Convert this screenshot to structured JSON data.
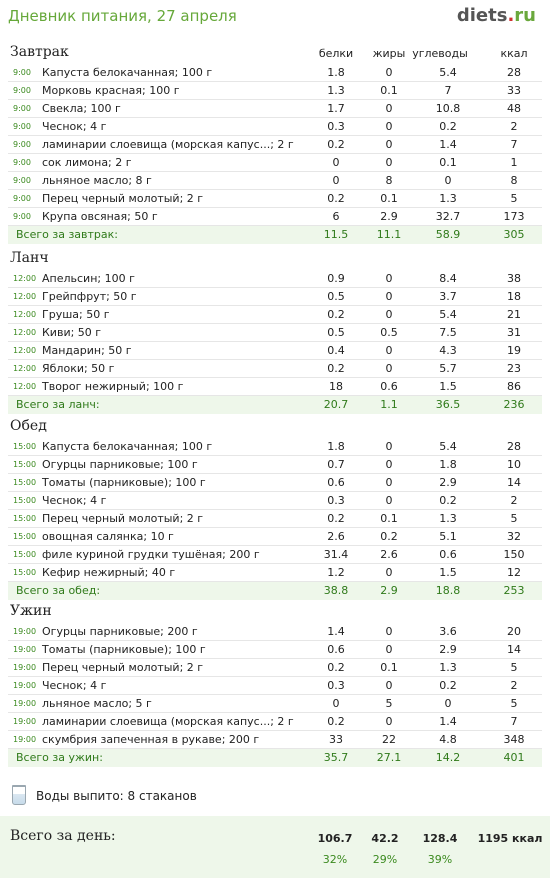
{
  "header": {
    "title": "Дневник питания, 27 апреля",
    "logo_main": "diets",
    "logo_dot": ".",
    "logo_tld": "ru"
  },
  "columns": {
    "proteins": "белки",
    "fats": "жиры",
    "carbs": "углеводы",
    "kcal": "ккал"
  },
  "meals": [
    {
      "title": "Завтрак",
      "items": [
        {
          "time": "9:00",
          "name": "Капуста белокачанная; 100 г",
          "p": "1.8",
          "f": "0",
          "c": "5.4",
          "k": "28"
        },
        {
          "time": "9:00",
          "name": "Морковь красная; 100 г",
          "p": "1.3",
          "f": "0.1",
          "c": "7",
          "k": "33"
        },
        {
          "time": "9:00",
          "name": "Свекла; 100 г",
          "p": "1.7",
          "f": "0",
          "c": "10.8",
          "k": "48"
        },
        {
          "time": "9:00",
          "name": "Чеснок; 4 г",
          "p": "0.3",
          "f": "0",
          "c": "0.2",
          "k": "2"
        },
        {
          "time": "9:00",
          "name": "ламинарии слоевища (морская капус...; 2 г",
          "p": "0.2",
          "f": "0",
          "c": "1.4",
          "k": "7"
        },
        {
          "time": "9:00",
          "name": "сок лимона; 2 г",
          "p": "0",
          "f": "0",
          "c": "0.1",
          "k": "1"
        },
        {
          "time": "9:00",
          "name": "льняное масло; 8 г",
          "p": "0",
          "f": "8",
          "c": "0",
          "k": "8"
        },
        {
          "time": "9:00",
          "name": "Перец черный молотый; 2 г",
          "p": "0.2",
          "f": "0.1",
          "c": "1.3",
          "k": "5"
        },
        {
          "time": "9:00",
          "name": "Крупа овсяная; 50 г",
          "p": "6",
          "f": "2.9",
          "c": "32.7",
          "k": "173"
        }
      ],
      "total": {
        "label": "Всего за завтрак:",
        "p": "11.5",
        "f": "11.1",
        "c": "58.9",
        "k": "305"
      }
    },
    {
      "title": "Ланч",
      "items": [
        {
          "time": "12:00",
          "name": "Апельсин; 100 г",
          "p": "0.9",
          "f": "0",
          "c": "8.4",
          "k": "38"
        },
        {
          "time": "12:00",
          "name": "Грейпфрут; 50 г",
          "p": "0.5",
          "f": "0",
          "c": "3.7",
          "k": "18"
        },
        {
          "time": "12:00",
          "name": "Груша; 50 г",
          "p": "0.2",
          "f": "0",
          "c": "5.4",
          "k": "21"
        },
        {
          "time": "12:00",
          "name": "Киви; 50 г",
          "p": "0.5",
          "f": "0.5",
          "c": "7.5",
          "k": "31"
        },
        {
          "time": "12:00",
          "name": "Мандарин; 50 г",
          "p": "0.4",
          "f": "0",
          "c": "4.3",
          "k": "19"
        },
        {
          "time": "12:00",
          "name": "Яблоки; 50 г",
          "p": "0.2",
          "f": "0",
          "c": "5.7",
          "k": "23"
        },
        {
          "time": "12:00",
          "name": "Творог нежирный; 100 г",
          "p": "18",
          "f": "0.6",
          "c": "1.5",
          "k": "86"
        }
      ],
      "total": {
        "label": "Всего за ланч:",
        "p": "20.7",
        "f": "1.1",
        "c": "36.5",
        "k": "236"
      }
    },
    {
      "title": "Обед",
      "items": [
        {
          "time": "15:00",
          "name": "Капуста белокачанная; 100 г",
          "p": "1.8",
          "f": "0",
          "c": "5.4",
          "k": "28"
        },
        {
          "time": "15:00",
          "name": "Огурцы парниковые; 100 г",
          "p": "0.7",
          "f": "0",
          "c": "1.8",
          "k": "10"
        },
        {
          "time": "15:00",
          "name": "Томаты (парниковые); 100 г",
          "p": "0.6",
          "f": "0",
          "c": "2.9",
          "k": "14"
        },
        {
          "time": "15:00",
          "name": "Чеснок; 4 г",
          "p": "0.3",
          "f": "0",
          "c": "0.2",
          "k": "2"
        },
        {
          "time": "15:00",
          "name": "Перец черный молотый; 2 г",
          "p": "0.2",
          "f": "0.1",
          "c": "1.3",
          "k": "5"
        },
        {
          "time": "15:00",
          "name": "овощная салянка; 10 г",
          "p": "2.6",
          "f": "0.2",
          "c": "5.1",
          "k": "32"
        },
        {
          "time": "15:00",
          "name": "филе куриной грудки тушёная; 200 г",
          "p": "31.4",
          "f": "2.6",
          "c": "0.6",
          "k": "150"
        },
        {
          "time": "15:00",
          "name": "Кефир нежирный; 40 г",
          "p": "1.2",
          "f": "0",
          "c": "1.5",
          "k": "12"
        }
      ],
      "total": {
        "label": "Всего за обед:",
        "p": "38.8",
        "f": "2.9",
        "c": "18.8",
        "k": "253"
      }
    },
    {
      "title": "Ужин",
      "items": [
        {
          "time": "19:00",
          "name": "Огурцы парниковые; 200 г",
          "p": "1.4",
          "f": "0",
          "c": "3.6",
          "k": "20"
        },
        {
          "time": "19:00",
          "name": "Томаты (парниковые); 100 г",
          "p": "0.6",
          "f": "0",
          "c": "2.9",
          "k": "14"
        },
        {
          "time": "19:00",
          "name": "Перец черный молотый; 2 г",
          "p": "0.2",
          "f": "0.1",
          "c": "1.3",
          "k": "5"
        },
        {
          "time": "19:00",
          "name": "Чеснок; 4 г",
          "p": "0.3",
          "f": "0",
          "c": "0.2",
          "k": "2"
        },
        {
          "time": "19:00",
          "name": "льняное масло; 5 г",
          "p": "0",
          "f": "5",
          "c": "0",
          "k": "5"
        },
        {
          "time": "19:00",
          "name": "ламинарии слоевища (морская капус...; 2 г",
          "p": "0.2",
          "f": "0",
          "c": "1.4",
          "k": "7"
        },
        {
          "time": "19:00",
          "name": "скумбрия запеченная в рукаве; 200 г",
          "p": "33",
          "f": "22",
          "c": "4.8",
          "k": "348"
        }
      ],
      "total": {
        "label": "Всего за ужин:",
        "p": "35.7",
        "f": "27.1",
        "c": "14.2",
        "k": "401"
      }
    }
  ],
  "water": {
    "icon": "glass-icon",
    "label": "Воды выпито: 8 стаканов"
  },
  "day": {
    "label": "Всего за день:",
    "p": "106.7",
    "f": "42.2",
    "c": "128.4",
    "k": "1195 ккал",
    "p_pct": "32%",
    "f_pct": "29%",
    "c_pct": "39%"
  },
  "colors": {
    "accent": "#66a83a",
    "total_bg": "#eef7ea",
    "total_text": "#2f7a1a"
  }
}
